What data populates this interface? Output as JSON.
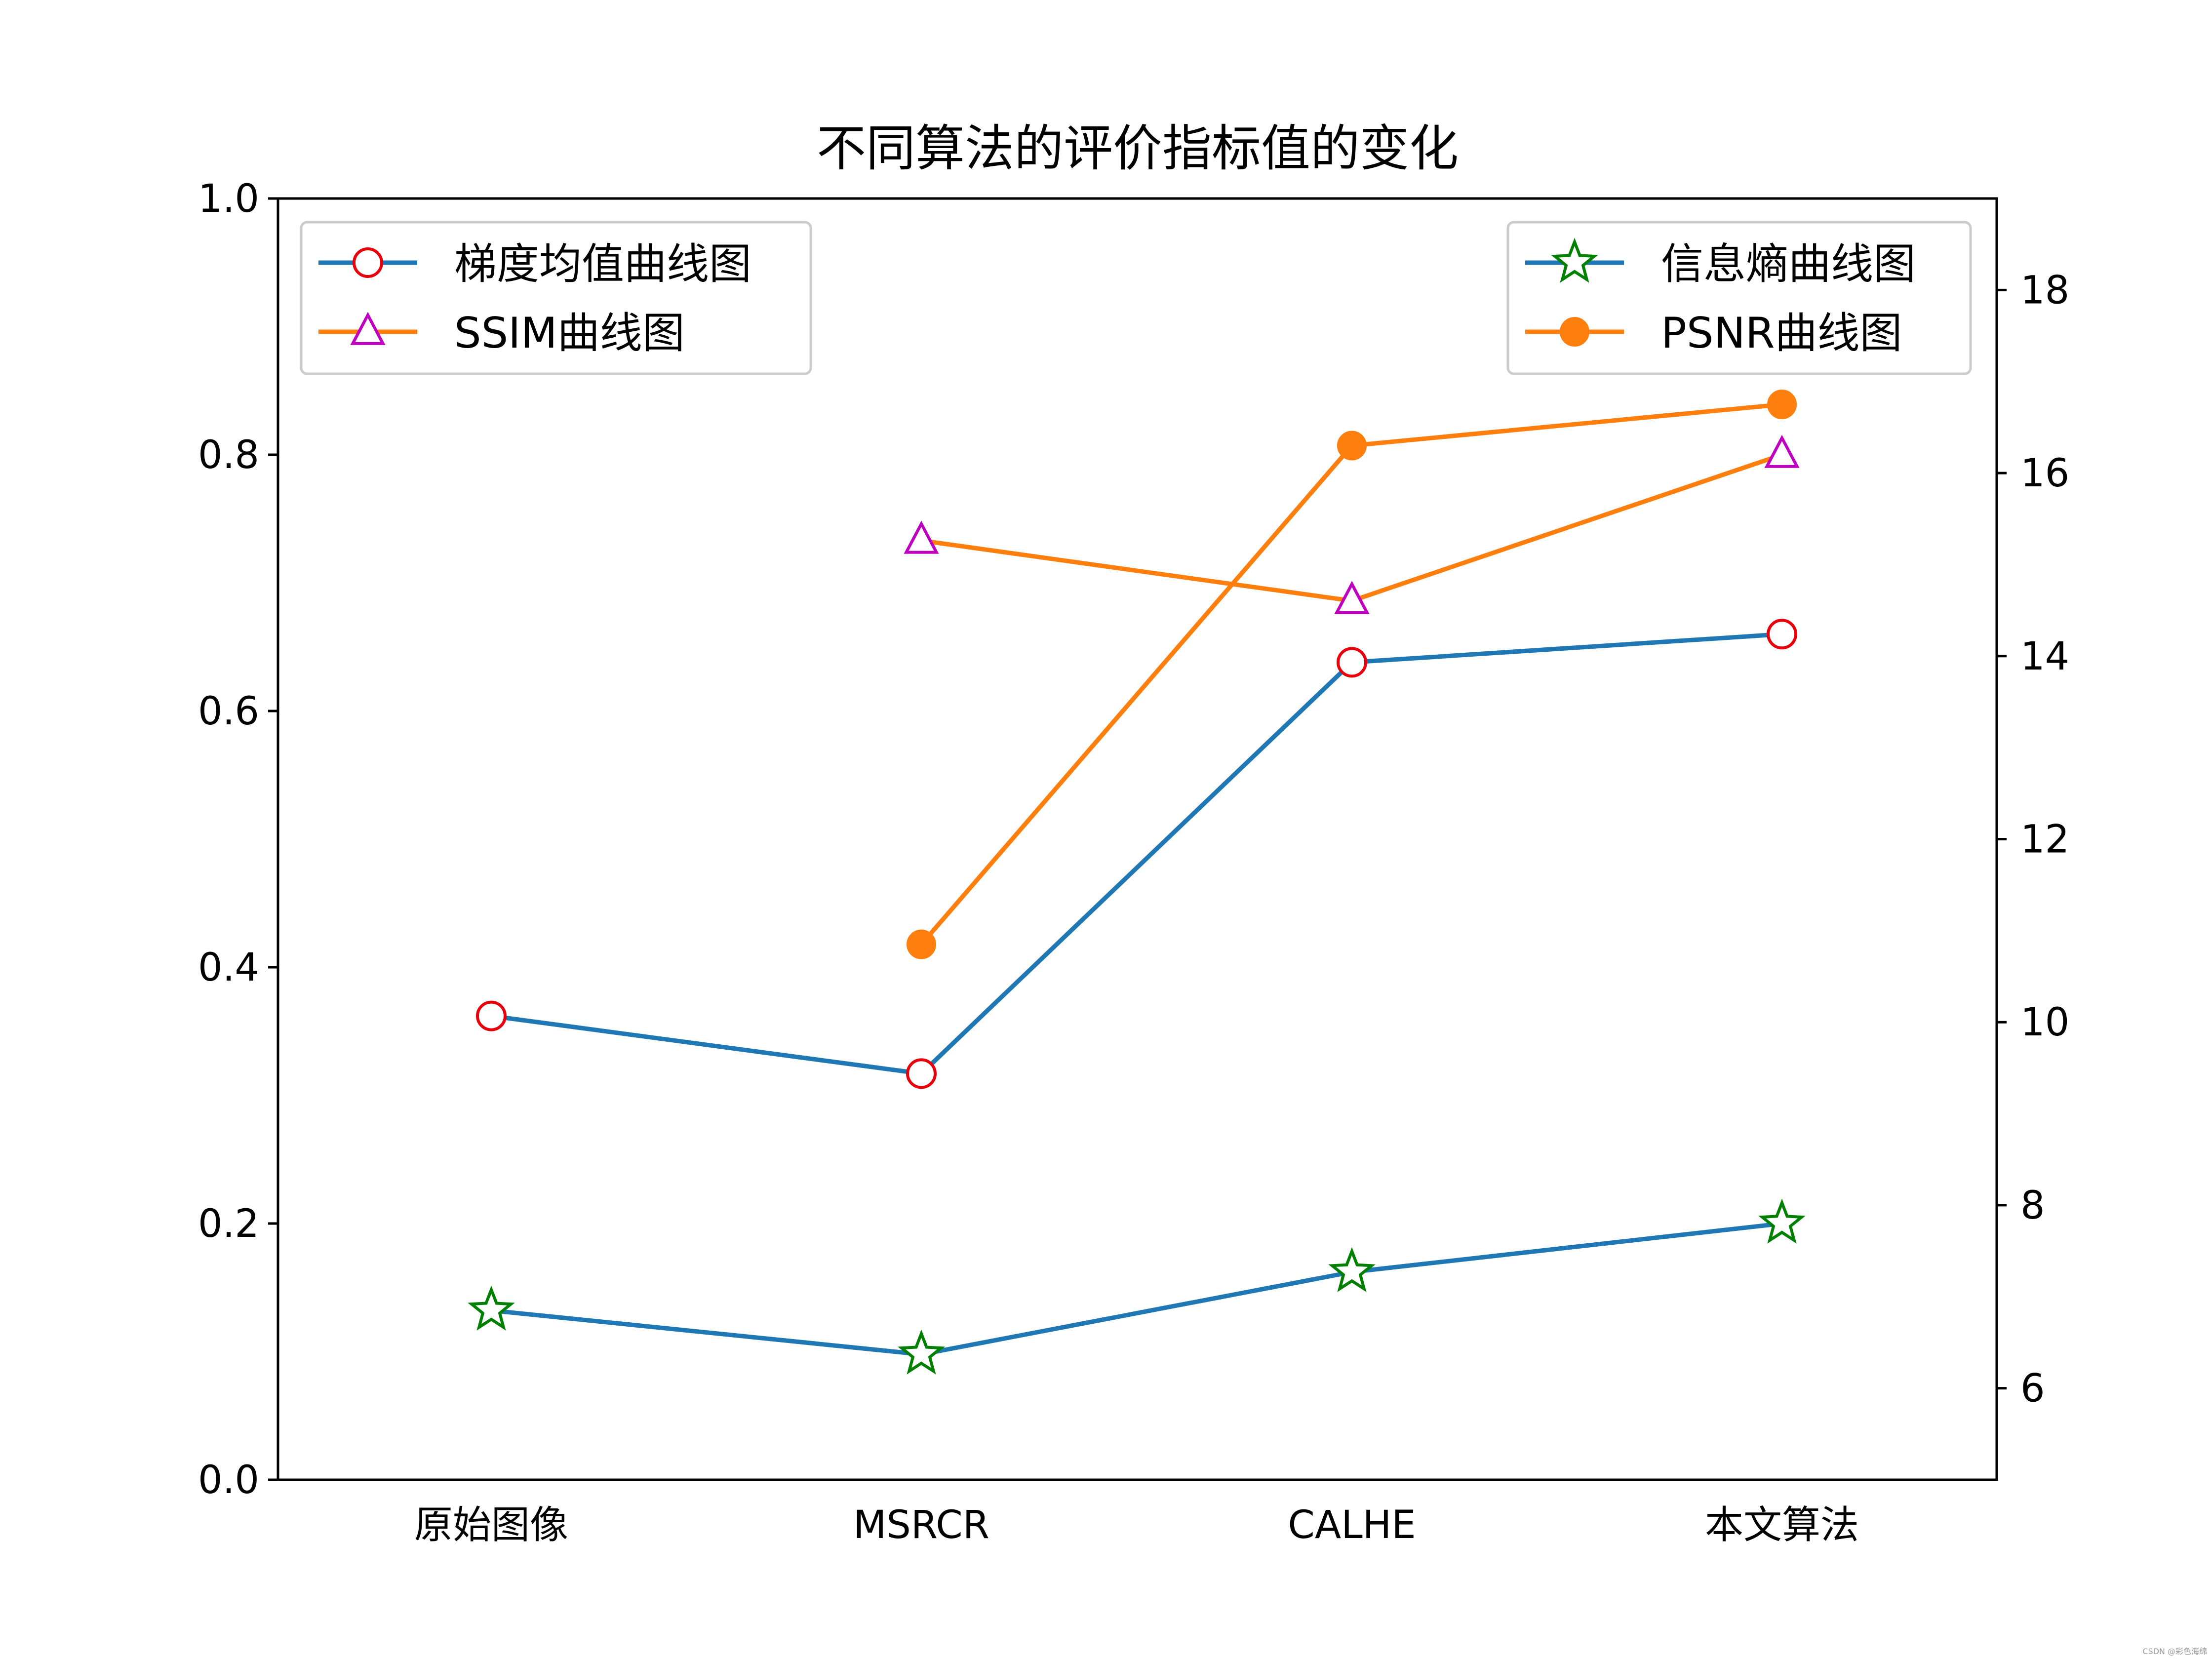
{
  "chart_data": {
    "type": "line",
    "title": "不同算法的评价指标值的变化",
    "categories": [
      "原始图像",
      "MSRCR",
      "CALHE",
      "本文算法"
    ],
    "left_axis": {
      "ylim": [
        0.0,
        1.0
      ],
      "ticks": [
        "0.0",
        "0.2",
        "0.4",
        "0.6",
        "0.8",
        "1.0"
      ],
      "tick_values": [
        0.0,
        0.2,
        0.4,
        0.6,
        0.8,
        1.0
      ]
    },
    "right_axis": {
      "ylim": [
        5,
        19
      ],
      "ticks": [
        "6",
        "8",
        "10",
        "12",
        "14",
        "16",
        "18"
      ],
      "tick_values": [
        6,
        8,
        10,
        12,
        14,
        16,
        18
      ]
    },
    "series": [
      {
        "name": "梯度均值曲线图",
        "axis": "left",
        "line_color": "#1f77b4",
        "marker": "circle-open",
        "marker_color": "#e8000b",
        "values": [
          0.362,
          0.317,
          0.638,
          0.66
        ]
      },
      {
        "name": "SSIM曲线图",
        "axis": "left",
        "line_color": "#ff7f0e",
        "marker": "triangle-open",
        "marker_color": "#bf00bf",
        "values": [
          null,
          0.733,
          0.686,
          0.8
        ]
      },
      {
        "name": "信息熵曲线图",
        "axis": "right",
        "line_color": "#1f77b4",
        "marker": "star-open",
        "marker_color": "#008000",
        "values": [
          6.85,
          6.37,
          7.27,
          7.8
        ]
      },
      {
        "name": "PSNR曲线图",
        "axis": "right",
        "line_color": "#ff7f0e",
        "marker": "circle-filled",
        "marker_color": "#ff7f0e",
        "values": [
          null,
          10.85,
          16.3,
          16.75
        ]
      }
    ],
    "legends": [
      {
        "placement": "upper-left",
        "series": [
          0,
          1
        ]
      },
      {
        "placement": "upper-right",
        "series": [
          2,
          3
        ]
      }
    ],
    "grid": false
  },
  "watermark": "CSDN @彩色海绵"
}
